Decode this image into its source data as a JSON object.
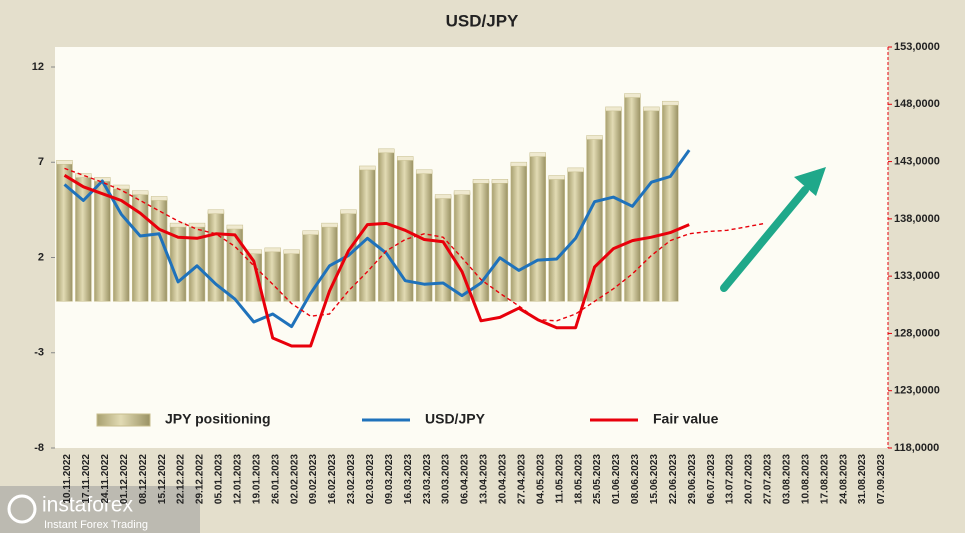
{
  "chart_data": {
    "type": "bar",
    "title": "USD/JPY",
    "watermark": "instaforex",
    "watermark_subtitle": "Instant Forex Trading",
    "categories": [
      "10.11.2022",
      "17.11.2022",
      "24.11.2022",
      "01.12.2022",
      "08.12.2022",
      "15.12.2022",
      "22.12.2022",
      "29.12.2022",
      "05.01.2023",
      "12.01.2023",
      "19.01.2023",
      "26.01.2023",
      "02.02.2023",
      "09.02.2023",
      "16.02.2023",
      "23.02.2023",
      "02.03.2023",
      "09.03.2023",
      "16.03.2023",
      "23.03.2023",
      "30.03.2023",
      "06.04.2023",
      "13.04.2023",
      "20.04.2023",
      "27.04.2023",
      "04.05.2023",
      "11.05.2023",
      "18.05.2023",
      "25.05.2023",
      "01.06.2023",
      "08.06.2023",
      "15.06.2023",
      "22.06.2023",
      "29.06.2023",
      "06.07.2023",
      "13.07.2023",
      "20.07.2023",
      "27.07.2023",
      "03.08.2023",
      "10.08.2023",
      "17.08.2023",
      "24.08.2023",
      "31.08.2023",
      "07.09.2023"
    ],
    "ylim": [
      -8,
      13.05
    ],
    "yticks": [
      -8,
      -3,
      2,
      7,
      12
    ],
    "y2lim": [
      118000,
      153000
    ],
    "y2ticks": [
      {
        "value": 118000,
        "label": "118,0000"
      },
      {
        "value": 123000,
        "label": "123,0000"
      },
      {
        "value": 128000,
        "label": "128,0000"
      },
      {
        "value": 133000,
        "label": "133,0000"
      },
      {
        "value": 138000,
        "label": "138,0000"
      },
      {
        "value": 143000,
        "label": "143,0000"
      },
      {
        "value": 148000,
        "label": "148,0000"
      },
      {
        "value": 153000,
        "label": "153,0000"
      }
    ],
    "grid": false,
    "series": [
      {
        "name": "JPY positioning",
        "type": "bar",
        "color": "#c6bd8c",
        "baseline": -0.3,
        "values": [
          7.0,
          6.3,
          6.1,
          5.7,
          5.4,
          5.1,
          3.7,
          3.7,
          4.4,
          3.6,
          2.3,
          2.4,
          2.3,
          3.3,
          3.7,
          4.4,
          6.7,
          7.6,
          7.2,
          6.5,
          5.2,
          5.4,
          6.0,
          6.0,
          6.9,
          7.4,
          6.2,
          6.6,
          8.3,
          9.8,
          10.5,
          9.8,
          10.1,
          null,
          null,
          null,
          null,
          null,
          null,
          null,
          null,
          null,
          null,
          null
        ]
      },
      {
        "name": "USD/JPY",
        "type": "line",
        "axis": "y2",
        "color": "#1f72bb",
        "values": [
          141000,
          139600,
          141300,
          138400,
          136500,
          136700,
          132500,
          133900,
          132300,
          131000,
          129000,
          129700,
          128600,
          131500,
          133900,
          134800,
          136300,
          135000,
          132600,
          132300,
          132400,
          131300,
          132400,
          134600,
          133500,
          134400,
          134500,
          136300,
          139500,
          139900,
          139100,
          141200,
          141700,
          144000,
          null,
          null,
          null,
          null,
          null,
          null,
          null,
          null,
          null,
          null
        ]
      },
      {
        "name": "Fair value",
        "type": "line",
        "axis": "y2",
        "color": "#e8000b",
        "values": [
          141800,
          140800,
          140200,
          139600,
          138500,
          137100,
          136400,
          136300,
          136700,
          136600,
          134300,
          127600,
          126900,
          126900,
          131700,
          135200,
          137500,
          137600,
          137000,
          136200,
          136000,
          133400,
          129100,
          129400,
          130200,
          129200,
          128500,
          128500,
          133800,
          135400,
          136100,
          136400,
          136800,
          137500,
          null,
          null,
          null,
          null,
          null,
          null,
          null,
          null,
          null,
          null
        ]
      },
      {
        "type": "line",
        "axis": "y2",
        "color": "#e8000b",
        "dashed": true,
        "values": [
          142400,
          141800,
          141200,
          140500,
          139600,
          138700,
          137800,
          137100,
          136700,
          135600,
          133900,
          132300,
          130600,
          129500,
          129700,
          131700,
          133400,
          135200,
          136200,
          136700,
          136400,
          134600,
          132700,
          131500,
          130400,
          129200,
          129100,
          129700,
          130800,
          131900,
          133200,
          134800,
          136100,
          136700,
          136900,
          137000,
          137300,
          137600,
          null,
          null,
          null,
          null,
          null,
          null
        ]
      }
    ]
  }
}
